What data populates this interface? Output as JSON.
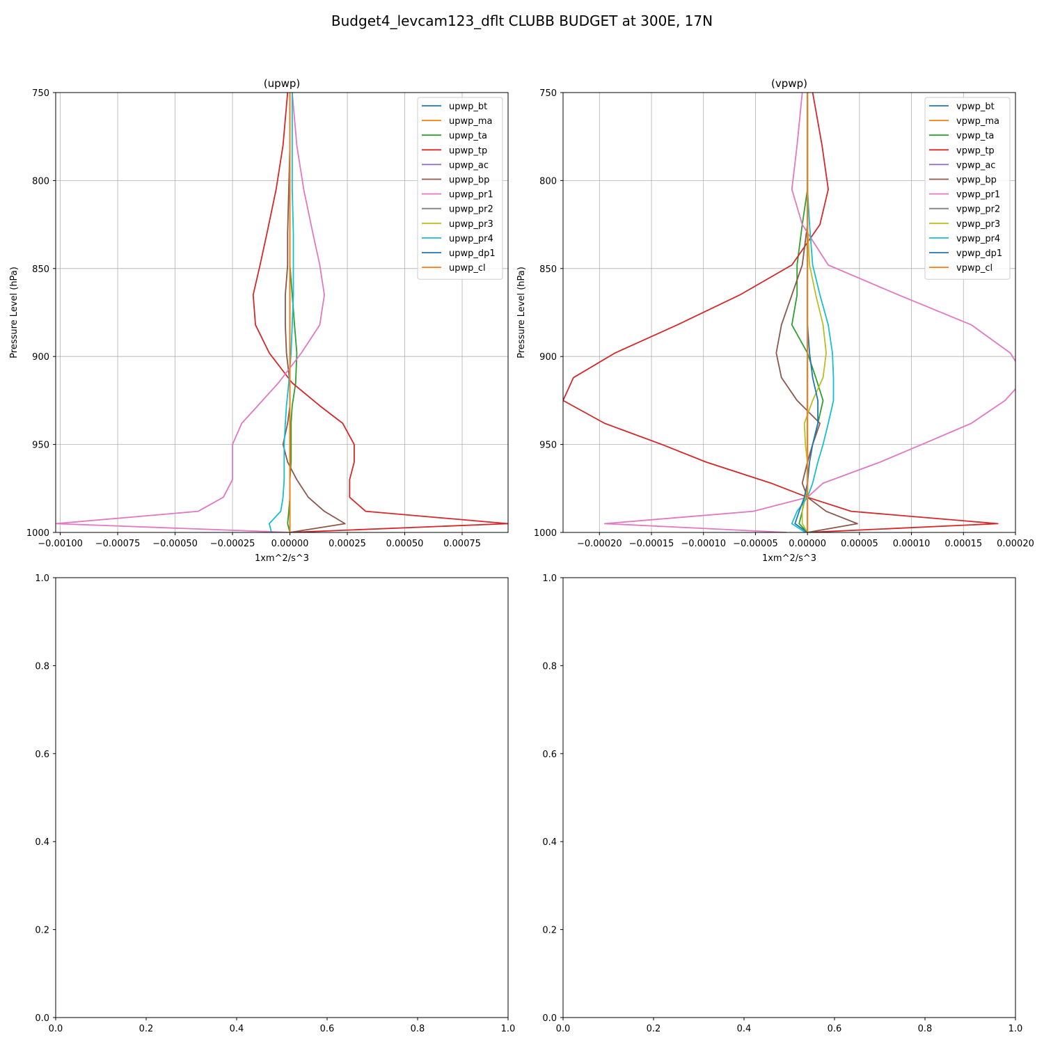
{
  "figure": {
    "suptitle": "Budget4_levcam123_dflt CLUBB BUDGET at 300E, 17N"
  },
  "chart_data": [
    {
      "type": "line",
      "title": "(upwp)",
      "xlabel": "1xm^2/s^3",
      "ylabel": "Pressure Level (hPa)",
      "xlim": [
        -0.00102,
        0.00095
      ],
      "ylim": [
        1000,
        750
      ],
      "yinverted": true,
      "grid": true,
      "legend_position": "top-right",
      "xticks": [
        "−0.00100",
        "−0.00075",
        "−0.00050",
        "−0.00025",
        "0.00000",
        "0.00025",
        "0.00050",
        "0.00075"
      ],
      "xtick_values": [
        -0.001,
        -0.00075,
        -0.0005,
        -0.00025,
        0,
        0.00025,
        0.0005,
        0.00075
      ],
      "yticks": [
        "750",
        "800",
        "850",
        "900",
        "950",
        "1000"
      ],
      "ytick_values": [
        750,
        800,
        850,
        900,
        950,
        1000
      ],
      "levels": [
        750,
        780,
        805,
        830,
        848,
        865,
        882,
        898,
        915,
        928,
        938,
        950,
        960,
        970,
        980,
        988,
        995,
        1000
      ],
      "series": [
        {
          "name": "upwp_bt",
          "color": "#1f77b4",
          "values": [
            0,
            0,
            0,
            0,
            0,
            0,
            0,
            0,
            0,
            0,
            0,
            0,
            0,
            0,
            0,
            0,
            0,
            0
          ]
        },
        {
          "name": "upwp_ma",
          "color": "#ff7f0e",
          "values": [
            0,
            0,
            0,
            0,
            0,
            0,
            0,
            0,
            0,
            0,
            0,
            0,
            0,
            0,
            0,
            0,
            0,
            0
          ]
        },
        {
          "name": "upwp_ta",
          "color": "#2ca02c",
          "values": [
            0,
            0,
            0,
            0,
            0,
            1e-05,
            2e-05,
            3e-05,
            2.5e-05,
            1e-05,
            5e-06,
            5e-06,
            5e-06,
            0,
            0,
            -5e-06,
            -1e-05,
            0
          ]
        },
        {
          "name": "upwp_tp",
          "color": "#d62728",
          "values": [
            -1e-05,
            -3e-05,
            -6e-05,
            -0.0001,
            -0.00013,
            -0.00016,
            -0.00015,
            -9e-05,
            1e-05,
            0.00013,
            0.00023,
            0.00028,
            0.00028,
            0.00026,
            0.00026,
            0.00033,
            0.00095,
            0
          ]
        },
        {
          "name": "upwp_ac",
          "color": "#9467bd",
          "values": [
            0,
            0,
            0,
            0,
            0,
            0,
            0,
            0,
            0,
            0,
            0,
            0,
            0,
            0,
            0,
            0,
            0,
            0
          ]
        },
        {
          "name": "upwp_bp",
          "color": "#8c564b",
          "values": [
            0,
            0,
            -5e-06,
            -1e-05,
            -1e-05,
            -2e-05,
            -2e-05,
            -1.5e-05,
            0,
            0,
            -1e-05,
            -3e-05,
            -1e-05,
            3e-05,
            8e-05,
            0.00015,
            0.00024,
            0
          ]
        },
        {
          "name": "upwp_pr1",
          "color": "#e377c2",
          "values": [
            1e-05,
            3e-05,
            6e-05,
            0.0001,
            0.00013,
            0.00015,
            0.00013,
            5e-05,
            -5e-05,
            -0.00014,
            -0.00021,
            -0.00025,
            -0.00025,
            -0.00025,
            -0.00029,
            -0.0004,
            -0.00102,
            0
          ]
        },
        {
          "name": "upwp_pr2",
          "color": "#7f7f7f",
          "values": [
            0,
            0,
            0,
            0,
            0,
            0,
            0,
            0,
            0,
            0,
            0,
            0,
            0,
            0,
            0,
            0,
            0,
            0
          ]
        },
        {
          "name": "upwp_pr3",
          "color": "#bcbd22",
          "values": [
            0,
            0,
            0,
            0,
            0,
            0,
            0,
            0,
            0,
            0,
            0,
            0,
            0,
            0,
            0,
            0,
            0,
            0
          ]
        },
        {
          "name": "upwp_pr4",
          "color": "#17becf",
          "values": [
            1e-05,
            1e-05,
            1e-05,
            1.5e-05,
            1.5e-05,
            1.5e-05,
            1e-05,
            5e-06,
            -5e-06,
            -1.5e-05,
            -2e-05,
            -2.5e-05,
            -2.5e-05,
            -2.5e-05,
            -3e-05,
            -4e-05,
            -9e-05,
            -8e-05
          ]
        },
        {
          "name": "upwp_dp1",
          "color": "#1f77b4",
          "values": [
            0,
            0,
            0,
            0,
            0,
            0,
            0,
            0,
            0,
            0,
            0,
            0,
            0,
            0,
            0,
            0,
            0,
            0
          ]
        },
        {
          "name": "upwp_cl",
          "color": "#ff7f0e",
          "values": [
            0,
            0,
            0,
            0,
            0,
            0,
            0,
            0,
            0,
            0,
            0,
            0,
            0,
            0,
            0,
            0,
            0,
            0
          ]
        }
      ]
    },
    {
      "type": "line",
      "title": "(vpwp)",
      "xlabel": "1xm^2/s^3",
      "ylabel": "Pressure Level (hPa)",
      "xlim": [
        -0.000235,
        0.0002
      ],
      "ylim": [
        1000,
        750
      ],
      "yinverted": true,
      "grid": true,
      "legend_position": "top-right",
      "xticks": [
        "−0.00020",
        "−0.00015",
        "−0.00010",
        "−0.00005",
        "0.00000",
        "0.00005",
        "0.00010",
        "0.00015",
        "0.00020"
      ],
      "xtick_values": [
        -0.0002,
        -0.00015,
        -0.0001,
        -5e-05,
        0,
        5e-05,
        0.0001,
        0.00015,
        0.0002
      ],
      "yticks": [
        "750",
        "800",
        "850",
        "900",
        "950",
        "1000"
      ],
      "ytick_values": [
        750,
        800,
        850,
        900,
        950,
        1000
      ],
      "levels": [
        750,
        780,
        805,
        825,
        848,
        865,
        882,
        898,
        912,
        925,
        938,
        950,
        960,
        972,
        980,
        988,
        995,
        1000
      ],
      "series": [
        {
          "name": "vpwp_bt",
          "color": "#1f77b4",
          "values": [
            0,
            0,
            0,
            0,
            0,
            0,
            0,
            0,
            0,
            0,
            0,
            0,
            0,
            0,
            0,
            0,
            0,
            0
          ]
        },
        {
          "name": "vpwp_ma",
          "color": "#ff7f0e",
          "values": [
            0,
            0,
            0,
            0,
            0,
            0,
            0,
            0,
            0,
            0,
            0,
            0,
            0,
            0,
            0,
            0,
            0,
            0
          ]
        },
        {
          "name": "vpwp_ta",
          "color": "#2ca02c",
          "values": [
            0,
            0,
            0,
            -5e-06,
            -1e-05,
            -1e-05,
            -1.5e-05,
            0,
            8e-06,
            1.5e-05,
            1e-05,
            5e-06,
            0,
            0,
            -3e-06,
            -5e-06,
            -8e-06,
            0
          ]
        },
        {
          "name": "vpwp_tp",
          "color": "#d62728",
          "values": [
            5e-06,
            1.4e-05,
            2e-05,
            1.2e-05,
            -1.5e-05,
            -6.5e-05,
            -0.000125,
            -0.000185,
            -0.000225,
            -0.000235,
            -0.000195,
            -0.00014,
            -9.75e-05,
            -3.5e-05,
            0,
            4.2e-05,
            0.000183,
            0
          ]
        },
        {
          "name": "vpwp_ac",
          "color": "#9467bd",
          "values": [
            0,
            0,
            0,
            0,
            0,
            0,
            0,
            0,
            0,
            0,
            0,
            0,
            0,
            0,
            0,
            0,
            0,
            0
          ]
        },
        {
          "name": "vpwp_bp",
          "color": "#8c564b",
          "values": [
            0,
            0,
            0,
            0,
            -5e-06,
            -1.5e-05,
            -2.5e-05,
            -3e-05,
            -2.5e-05,
            -1e-05,
            1.2e-05,
            5e-06,
            0,
            -5e-06,
            0,
            1.8e-05,
            4.8e-05,
            0
          ]
        },
        {
          "name": "vpwp_pr1",
          "color": "#e377c2",
          "values": [
            -5e-06,
            -1e-05,
            -1.5e-05,
            -5e-06,
            2e-05,
            8.75e-05,
            0.0001575,
            0.000195,
            0.00021,
            0.00019,
            0.0001575,
            0.00011,
            7e-05,
            1.5e-05,
            0,
            -5.2e-05,
            -0.000195,
            -2e-05
          ]
        },
        {
          "name": "vpwp_pr2",
          "color": "#7f7f7f",
          "values": [
            0,
            0,
            0,
            0,
            0,
            0,
            0,
            0,
            0,
            0,
            0,
            0,
            0,
            0,
            0,
            0,
            0,
            0
          ]
        },
        {
          "name": "vpwp_pr3",
          "color": "#bcbd22",
          "values": [
            0,
            0,
            0,
            0,
            2e-06,
            8e-06,
            1.5e-05,
            1.8e-05,
            1.5e-05,
            5e-06,
            -3e-06,
            -2e-06,
            0,
            0,
            -2e-06,
            -5e-06,
            -5e-06,
            0
          ]
        },
        {
          "name": "vpwp_pr4",
          "color": "#17becf",
          "values": [
            0,
            0,
            0,
            2e-06,
            5e-06,
            1.2e-05,
            2e-05,
            2.4e-05,
            2.5e-05,
            2.5e-05,
            2e-05,
            1.5e-05,
            1e-05,
            5e-06,
            0,
            -1e-05,
            -1.5e-05,
            -2e-06
          ]
        },
        {
          "name": "vpwp_dp1",
          "color": "#1f77b4",
          "values": [
            0,
            0,
            0,
            0,
            0,
            0,
            0,
            2e-06,
            5e-06,
            1e-05,
            1e-05,
            5e-06,
            2e-06,
            0,
            -3e-06,
            -8e-06,
            -1.2e-05,
            0
          ]
        },
        {
          "name": "vpwp_cl",
          "color": "#ff7f0e",
          "values": [
            0,
            0,
            0,
            0,
            0,
            0,
            0,
            0,
            0,
            0,
            0,
            0,
            0,
            0,
            0,
            0,
            0,
            0
          ]
        }
      ]
    },
    {
      "type": "line",
      "title": "",
      "xlim": [
        0,
        1
      ],
      "ylim": [
        0,
        1
      ],
      "grid": false,
      "xticks": [
        "0.0",
        "0.2",
        "0.4",
        "0.6",
        "0.8",
        "1.0"
      ],
      "xtick_values": [
        0,
        0.2,
        0.4,
        0.6,
        0.8,
        1.0
      ],
      "yticks": [
        "0.0",
        "0.2",
        "0.4",
        "0.6",
        "0.8",
        "1.0"
      ],
      "ytick_values": [
        0,
        0.2,
        0.4,
        0.6,
        0.8,
        1.0
      ],
      "series": []
    },
    {
      "type": "line",
      "title": "",
      "xlim": [
        0,
        1
      ],
      "ylim": [
        0,
        1
      ],
      "grid": false,
      "xticks": [
        "0.0",
        "0.2",
        "0.4",
        "0.6",
        "0.8",
        "1.0"
      ],
      "xtick_values": [
        0,
        0.2,
        0.4,
        0.6,
        0.8,
        1.0
      ],
      "yticks": [
        "0.0",
        "0.2",
        "0.4",
        "0.6",
        "0.8",
        "1.0"
      ],
      "ytick_values": [
        0,
        0.2,
        0.4,
        0.6,
        0.8,
        1.0
      ],
      "series": []
    }
  ]
}
